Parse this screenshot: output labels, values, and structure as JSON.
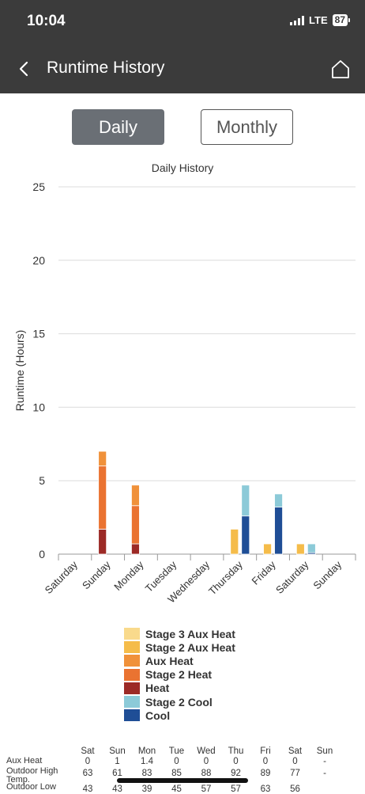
{
  "status": {
    "time": "10:04",
    "network": "LTE",
    "battery": "87"
  },
  "nav": {
    "title": "Runtime History"
  },
  "toggle": {
    "daily": "Daily",
    "monthly": "Monthly"
  },
  "chart_data": {
    "type": "bar",
    "stacked": true,
    "title": "Daily History",
    "ylabel": "Runtime (Hours)",
    "xlabel": "",
    "ylim": [
      0,
      25
    ],
    "yticks": [
      0,
      5,
      10,
      15,
      20,
      25
    ],
    "grid": true,
    "groups": [
      "Saturday",
      "Sunday",
      "Monday",
      "Tuesday",
      "Wednesday",
      "Thursday",
      "Friday",
      "Saturday",
      "Sunday"
    ],
    "heat_stack": [
      "Heat",
      "Stage 2 Heat",
      "Aux Heat",
      "Stage 2 Aux Heat",
      "Stage 3 Aux Heat"
    ],
    "cool_stack": [
      "Cool",
      "Stage 2 Cool"
    ],
    "series": [
      {
        "name": "Stage 3 Aux Heat",
        "color": "#f9da8c",
        "values": [
          0,
          0,
          0,
          0,
          0,
          0,
          0,
          0,
          0
        ]
      },
      {
        "name": "Stage 2 Aux Heat",
        "color": "#f5bc4a",
        "values": [
          0,
          0,
          0,
          0,
          0,
          1.7,
          0.7,
          0.7,
          0
        ]
      },
      {
        "name": "Aux Heat",
        "color": "#f0913a",
        "values": [
          0,
          1,
          1.4,
          0,
          0,
          0,
          0,
          0,
          0
        ]
      },
      {
        "name": "Stage 2 Heat",
        "color": "#ea7331",
        "values": [
          0,
          4.3,
          2.6,
          0,
          0,
          0,
          0,
          0,
          0
        ]
      },
      {
        "name": "Heat",
        "color": "#9c2a26",
        "values": [
          0,
          1.7,
          0.7,
          0,
          0,
          0,
          0,
          0,
          0
        ]
      },
      {
        "name": "Stage 2 Cool",
        "color": "#8ccad8",
        "values": [
          0,
          0,
          0,
          0,
          0,
          2.1,
          0.9,
          0.6,
          0
        ]
      },
      {
        "name": "Cool",
        "color": "#1f4e96",
        "values": [
          0,
          0,
          0,
          0,
          0,
          2.6,
          3.2,
          0.1,
          0
        ]
      }
    ]
  },
  "table": {
    "days": [
      "Sat",
      "Sun",
      "Mon",
      "Tue",
      "Wed",
      "Thu",
      "Fri",
      "Sat",
      "Sun"
    ],
    "rows": [
      {
        "label": "Aux Heat",
        "values": [
          "0",
          "1",
          "1.4",
          "0",
          "0",
          "0",
          "0",
          "0",
          "-"
        ]
      },
      {
        "label": "Outdoor High Temp.",
        "values": [
          "63",
          "61",
          "83",
          "85",
          "88",
          "92",
          "89",
          "77",
          "-"
        ]
      },
      {
        "label": "Outdoor Low",
        "values": [
          "43",
          "43",
          "39",
          "45",
          "57",
          "57",
          "63",
          "56",
          ""
        ]
      }
    ]
  }
}
